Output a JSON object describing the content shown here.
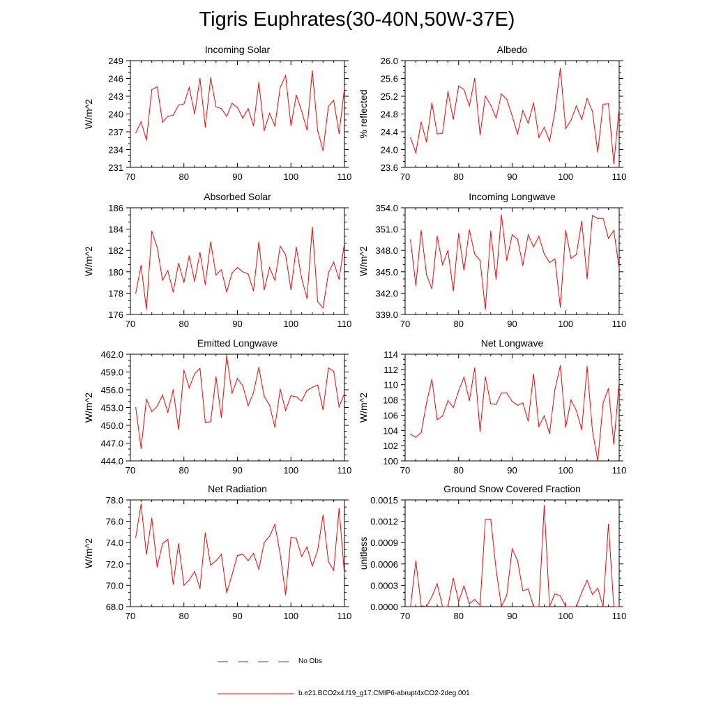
{
  "figure": {
    "title": "Tigris Euphrates(30-40N,50W-37E)",
    "series_color": "#ff0000",
    "obs_color": "#3b3bd9"
  },
  "legend": {
    "obs_label": "No Obs",
    "model_label": "b.e21.BCO2x4.f19_g17.CMIP6-abrupt4xCO2-2deg.001"
  },
  "chart_data": [
    {
      "type": "line",
      "title": "Incoming Solar",
      "ylabel": "W/m^2",
      "xlabel": "",
      "xlim": [
        70,
        110
      ],
      "xticks": [
        70,
        80,
        90,
        100,
        110
      ],
      "ylim": [
        231,
        249
      ],
      "yticks": [
        "231",
        "234",
        "237",
        "240",
        "243",
        "246",
        "249"
      ],
      "x": [
        71,
        72,
        73,
        74,
        75,
        76,
        77,
        78,
        79,
        80,
        81,
        82,
        83,
        84,
        85,
        86,
        87,
        88,
        89,
        90,
        91,
        92,
        93,
        94,
        95,
        96,
        97,
        98,
        99,
        100,
        101,
        102,
        103,
        104,
        105,
        106,
        107,
        108,
        109,
        110
      ],
      "series": [
        {
          "name": "b.e21.BCO2x4.f19_g17.CMIP6-abrupt4xCO2-2deg.001",
          "values": [
            236.8,
            238.7,
            235.6,
            244.1,
            244.6,
            238.6,
            239.6,
            239.8,
            241.5,
            241.7,
            244.5,
            240.0,
            246.0,
            237.8,
            246.1,
            241.2,
            240.9,
            239.6,
            241.8,
            241.1,
            239.3,
            240.9,
            238.0,
            245.3,
            237.2,
            240.1,
            238.0,
            244.5,
            246.5,
            238.0,
            243.2,
            240.5,
            237.3,
            247.3,
            237.2,
            233.8,
            241.3,
            242.3,
            236.7,
            244.4
          ]
        }
      ]
    },
    {
      "type": "line",
      "title": "Albedo",
      "ylabel": "% reflected",
      "xlabel": "",
      "xlim": [
        70,
        110
      ],
      "xticks": [
        70,
        80,
        90,
        100,
        110
      ],
      "ylim": [
        23.6,
        26.0
      ],
      "yticks": [
        "23.6",
        "24.0",
        "24.4",
        "24.8",
        "25.2",
        "25.6",
        "26.0"
      ],
      "x": [
        71,
        72,
        73,
        74,
        75,
        76,
        77,
        78,
        79,
        80,
        81,
        82,
        83,
        84,
        85,
        86,
        87,
        88,
        89,
        90,
        91,
        92,
        93,
        94,
        95,
        96,
        97,
        98,
        99,
        100,
        101,
        102,
        103,
        104,
        105,
        106,
        107,
        108,
        109,
        110
      ],
      "series": [
        {
          "name": "b.e21.BCO2x4.f19_g17.CMIP6-abrupt4xCO2-2deg.001",
          "values": [
            24.27,
            23.93,
            24.62,
            24.17,
            25.05,
            24.35,
            24.37,
            25.3,
            24.68,
            25.43,
            25.35,
            24.98,
            25.6,
            24.33,
            25.2,
            25.0,
            24.71,
            25.25,
            25.13,
            24.76,
            24.35,
            24.88,
            24.59,
            25.05,
            24.27,
            24.5,
            24.19,
            24.86,
            25.83,
            24.47,
            24.66,
            24.98,
            24.68,
            25.15,
            24.86,
            23.94,
            25.02,
            25.03,
            23.68,
            24.93
          ]
        }
      ]
    },
    {
      "type": "line",
      "title": "Absorbed Solar",
      "ylabel": "W/m^2",
      "xlabel": "",
      "xlim": [
        70,
        110
      ],
      "xticks": [
        70,
        80,
        90,
        100,
        110
      ],
      "ylim": [
        176,
        186
      ],
      "yticks": [
        "176",
        "178",
        "180",
        "182",
        "184",
        "186"
      ],
      "x": [
        71,
        72,
        73,
        74,
        75,
        76,
        77,
        78,
        79,
        80,
        81,
        82,
        83,
        84,
        85,
        86,
        87,
        88,
        89,
        90,
        91,
        92,
        93,
        94,
        95,
        96,
        97,
        98,
        99,
        100,
        101,
        102,
        103,
        104,
        105,
        106,
        107,
        108,
        109,
        110
      ],
      "series": [
        {
          "name": "b.e21.BCO2x4.f19_g17.CMIP6-abrupt4xCO2-2deg.001",
          "values": [
            178.0,
            180.6,
            176.5,
            183.8,
            182.3,
            179.2,
            180.1,
            178.1,
            180.8,
            179.0,
            181.5,
            179.1,
            181.8,
            178.8,
            182.8,
            179.7,
            180.2,
            178.1,
            179.9,
            180.4,
            180.0,
            179.8,
            178.2,
            182.8,
            178.3,
            180.4,
            179.2,
            182.4,
            181.6,
            178.3,
            182.3,
            179.4,
            177.5,
            184.2,
            177.2,
            176.6,
            179.9,
            180.9,
            179.3,
            182.7
          ]
        }
      ]
    },
    {
      "type": "line",
      "title": "Incoming Longwave",
      "ylabel": "W/m^2",
      "xlabel": "",
      "xlim": [
        70,
        110
      ],
      "xticks": [
        70,
        80,
        90,
        100,
        110
      ],
      "ylim": [
        339.0,
        354.0
      ],
      "yticks": [
        "339.0",
        "342.0",
        "345.0",
        "348.0",
        "351.0",
        "354.0"
      ],
      "x": [
        71,
        72,
        73,
        74,
        75,
        76,
        77,
        78,
        79,
        80,
        81,
        82,
        83,
        84,
        85,
        86,
        87,
        88,
        89,
        90,
        91,
        92,
        93,
        94,
        95,
        96,
        97,
        98,
        99,
        100,
        101,
        102,
        103,
        104,
        105,
        106,
        107,
        108,
        109,
        110
      ],
      "series": [
        {
          "name": "b.e21.BCO2x4.f19_g17.CMIP6-abrupt4xCO2-2deg.001",
          "values": [
            349.5,
            343.1,
            350.8,
            344.6,
            342.6,
            350.0,
            346.0,
            348.0,
            342.3,
            350.4,
            345.2,
            350.9,
            347.5,
            346.6,
            339.7,
            350.7,
            343.9,
            353.0,
            346.6,
            350.2,
            349.6,
            345.9,
            350.2,
            348.5,
            350.0,
            347.5,
            346.3,
            346.8,
            340.0,
            350.8,
            346.9,
            347.4,
            352.1,
            344.0,
            352.9,
            352.5,
            352.5,
            349.7,
            350.8,
            345.5
          ]
        }
      ]
    },
    {
      "type": "line",
      "title": "Emitted Longwave",
      "ylabel": "W/m^2",
      "xlabel": "",
      "xlim": [
        70,
        110
      ],
      "xticks": [
        70,
        80,
        90,
        100,
        110
      ],
      "ylim": [
        444.0,
        462.0
      ],
      "yticks": [
        "444.0",
        "447.0",
        "450.0",
        "453.0",
        "456.0",
        "459.0",
        "462.0"
      ],
      "x": [
        71,
        72,
        73,
        74,
        75,
        76,
        77,
        78,
        79,
        80,
        81,
        82,
        83,
        84,
        85,
        86,
        87,
        88,
        89,
        90,
        91,
        92,
        93,
        94,
        95,
        96,
        97,
        98,
        99,
        100,
        101,
        102,
        103,
        104,
        105,
        106,
        107,
        108,
        109,
        110
      ],
      "series": [
        {
          "name": "b.e21.BCO2x4.f19_g17.CMIP6-abrupt4xCO2-2deg.001",
          "values": [
            453.0,
            446.1,
            454.4,
            452.3,
            453.2,
            455.1,
            452.2,
            456.0,
            449.3,
            459.3,
            456.3,
            458.7,
            459.6,
            450.5,
            450.6,
            458.2,
            451.3,
            461.7,
            455.4,
            457.9,
            456.7,
            453.3,
            455.5,
            459.8,
            454.9,
            453.4,
            449.7,
            456.1,
            452.5,
            455.0,
            454.8,
            454.1,
            455.9,
            456.4,
            456.8,
            452.6,
            459.7,
            459.1,
            453.1,
            455.4
          ]
        }
      ]
    },
    {
      "type": "line",
      "title": "Net Longwave",
      "ylabel": "W/m^2",
      "xlabel": "",
      "xlim": [
        70,
        110
      ],
      "xticks": [
        70,
        80,
        90,
        100,
        110
      ],
      "ylim": [
        100,
        114
      ],
      "yticks": [
        "100",
        "102",
        "104",
        "106",
        "108",
        "110",
        "112",
        "114"
      ],
      "x": [
        71,
        72,
        73,
        74,
        75,
        76,
        77,
        78,
        79,
        80,
        81,
        82,
        83,
        84,
        85,
        86,
        87,
        88,
        89,
        90,
        91,
        92,
        93,
        94,
        95,
        96,
        97,
        98,
        99,
        100,
        101,
        102,
        103,
        104,
        105,
        106,
        107,
        108,
        109,
        110
      ],
      "series": [
        {
          "name": "b.e21.BCO2x4.f19_g17.CMIP6-abrupt4xCO2-2deg.001",
          "values": [
            103.5,
            103.1,
            103.7,
            107.6,
            110.7,
            105.4,
            105.9,
            107.9,
            107.0,
            109.2,
            111.0,
            107.9,
            112.2,
            103.9,
            111.0,
            107.5,
            107.4,
            108.9,
            108.9,
            107.8,
            107.3,
            107.6,
            105.2,
            111.4,
            104.5,
            105.9,
            103.6,
            109.4,
            112.5,
            104.4,
            108.0,
            106.6,
            104.1,
            112.4,
            104.0,
            100.0,
            107.6,
            109.5,
            102.2,
            110.3
          ]
        }
      ]
    },
    {
      "type": "line",
      "title": "Net Radiation",
      "ylabel": "W/m^2",
      "xlabel": "",
      "xlim": [
        70,
        110
      ],
      "xticks": [
        70,
        80,
        90,
        100,
        110
      ],
      "ylim": [
        68.0,
        78.0
      ],
      "yticks": [
        "68.0",
        "70.0",
        "72.0",
        "74.0",
        "76.0",
        "78.0"
      ],
      "x": [
        71,
        72,
        73,
        74,
        75,
        76,
        77,
        78,
        79,
        80,
        81,
        82,
        83,
        84,
        85,
        86,
        87,
        88,
        89,
        90,
        91,
        92,
        93,
        94,
        95,
        96,
        97,
        98,
        99,
        100,
        101,
        102,
        103,
        104,
        105,
        106,
        107,
        108,
        109,
        110
      ],
      "series": [
        {
          "name": "b.e21.BCO2x4.f19_g17.CMIP6-abrupt4xCO2-2deg.001",
          "values": [
            74.5,
            77.6,
            72.9,
            76.3,
            71.7,
            73.9,
            74.3,
            70.1,
            73.9,
            70.0,
            70.5,
            71.3,
            69.7,
            74.9,
            71.9,
            72.3,
            72.9,
            69.3,
            71.0,
            72.8,
            72.9,
            72.3,
            73.0,
            71.5,
            74.0,
            74.6,
            75.7,
            72.9,
            69.1,
            74.5,
            74.4,
            72.7,
            73.6,
            71.8,
            73.3,
            76.6,
            72.2,
            71.4,
            77.2,
            71.0
          ]
        }
      ]
    },
    {
      "type": "line",
      "title": "Ground Snow Covered Fraction",
      "ylabel": "unitless",
      "xlabel": "",
      "xlim": [
        70,
        110
      ],
      "xticks": [
        70,
        80,
        90,
        100,
        110
      ],
      "ylim": [
        0,
        0.0015
      ],
      "yticks": [
        "0.0000",
        "0.0003",
        "0.0006",
        "0.0009",
        "0.0012",
        "0.0015"
      ],
      "x": [
        71,
        72,
        73,
        74,
        75,
        76,
        77,
        78,
        79,
        80,
        81,
        82,
        83,
        84,
        85,
        86,
        87,
        88,
        89,
        90,
        91,
        92,
        93,
        94,
        95,
        96,
        97,
        98,
        99,
        100,
        101,
        102,
        103,
        104,
        105,
        106,
        107,
        108,
        109,
        110
      ],
      "series": [
        {
          "name": "b.e21.BCO2x4.f19_g17.CMIP6-abrupt4xCO2-2deg.001",
          "values": [
            0.0,
            0.00064,
            1e-05,
            0.0,
            0.00014,
            0.00032,
            0.0,
            0.0,
            0.0004,
            7e-05,
            0.00029,
            4e-05,
            0.0001,
            2e-05,
            0.00122,
            0.00123,
            0.00052,
            0.0,
            0.00016,
            0.00081,
            0.00065,
            0.00022,
            0.00025,
            0.0,
            0.0,
            0.00142,
            0.0,
            0.00018,
            0.00015,
            0.0,
            0.0,
            0.0,
            0.0002,
            0.00037,
            0.00017,
            0.00026,
            0.0,
            0.00116,
            0.0,
            0.0
          ]
        }
      ]
    }
  ]
}
